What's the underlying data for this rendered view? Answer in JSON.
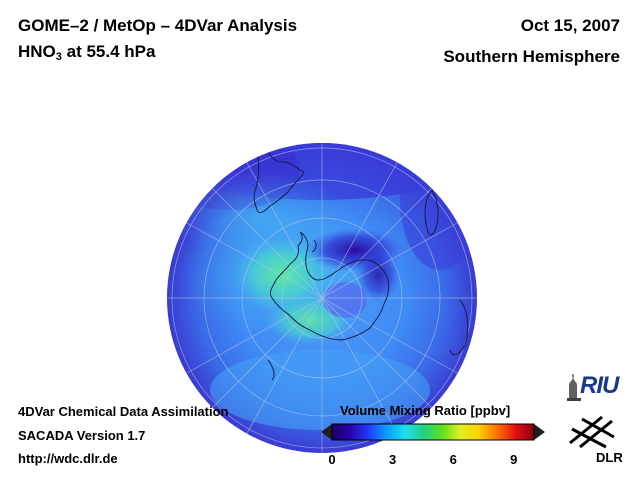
{
  "header": {
    "title_line1": "GOME–2 / MetOp – 4DVar Analysis",
    "species": "HNO",
    "species_sub": "3",
    "pressure": " at 55.4 hPa",
    "date": "Oct 15, 2007",
    "region": "Southern Hemisphere"
  },
  "footer": {
    "line1": "4DVar Chemical Data Assimilation",
    "line2": "SACADA Version 1.7",
    "line3": "http://wdc.dlr.de"
  },
  "colorbar": {
    "title": "Volume Mixing Ratio [ppbv]",
    "min": 0,
    "max": 10,
    "ticks": [
      "0",
      "3",
      "6",
      "9"
    ],
    "tick_values": [
      0,
      3,
      6,
      9
    ],
    "colors": [
      "#1a0060",
      "#2a00b0",
      "#1e3cff",
      "#0aa0ff",
      "#20e0f0",
      "#20d080",
      "#60e020",
      "#e0f020",
      "#ffd000",
      "#ff7000",
      "#e01010",
      "#900010"
    ]
  },
  "logos": {
    "riu": "RIU",
    "dlr": "DLR"
  },
  "map": {
    "projection": "orthographic, south polar view",
    "field_colors": {
      "background": "#3a78f0",
      "outer_ring": "#3a3ad8",
      "low": "#1a10a0",
      "mid": "#38b8f0",
      "high": "#50d8a0"
    }
  }
}
